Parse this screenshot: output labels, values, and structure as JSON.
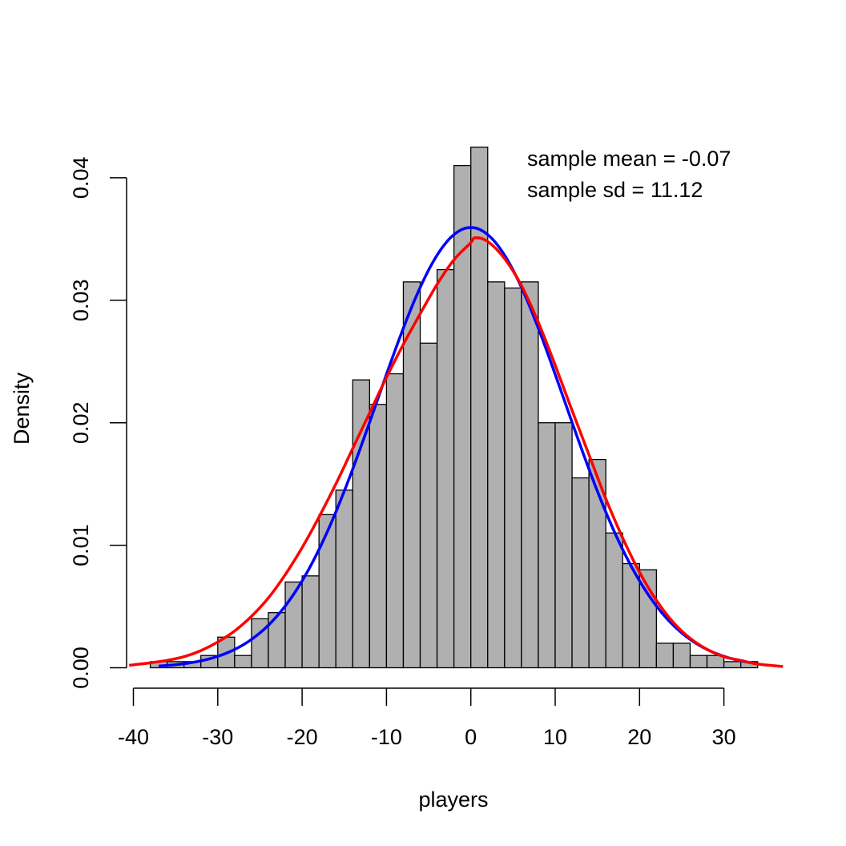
{
  "chart_data": {
    "type": "bar",
    "title": "",
    "xlabel": "players",
    "ylabel": "Density",
    "xlim": [
      -40,
      37
    ],
    "ylim": [
      0,
      0.043
    ],
    "x_ticks": [
      -40,
      -30,
      -20,
      -10,
      0,
      10,
      20,
      30
    ],
    "x_tick_labels": [
      "-40",
      "-30",
      "-20",
      "-10",
      "0",
      "10",
      "20",
      "30"
    ],
    "y_ticks": [
      0,
      0.01,
      0.02,
      0.03,
      0.04
    ],
    "y_tick_labels": [
      "0.00",
      "0.01",
      "0.02",
      "0.03",
      "0.04"
    ],
    "bin_width": 2,
    "bins": [
      {
        "x0": -38,
        "x1": -36,
        "density": 0.0005
      },
      {
        "x0": -36,
        "x1": -34,
        "density": 0.0005
      },
      {
        "x0": -34,
        "x1": -32,
        "density": 0.0005
      },
      {
        "x0": -32,
        "x1": -30,
        "density": 0.001
      },
      {
        "x0": -30,
        "x1": -28,
        "density": 0.0025
      },
      {
        "x0": -28,
        "x1": -26,
        "density": 0.001
      },
      {
        "x0": -26,
        "x1": -24,
        "density": 0.004
      },
      {
        "x0": -24,
        "x1": -22,
        "density": 0.0045
      },
      {
        "x0": -22,
        "x1": -20,
        "density": 0.007
      },
      {
        "x0": -20,
        "x1": -18,
        "density": 0.0075
      },
      {
        "x0": -18,
        "x1": -16,
        "density": 0.0125
      },
      {
        "x0": -16,
        "x1": -14,
        "density": 0.0145
      },
      {
        "x0": -14,
        "x1": -12,
        "density": 0.0235
      },
      {
        "x0": -12,
        "x1": -10,
        "density": 0.0215
      },
      {
        "x0": -10,
        "x1": -8,
        "density": 0.024
      },
      {
        "x0": -8,
        "x1": -6,
        "density": 0.0315
      },
      {
        "x0": -6,
        "x1": -4,
        "density": 0.0265
      },
      {
        "x0": -4,
        "x1": -2,
        "density": 0.0325
      },
      {
        "x0": -2,
        "x1": 0,
        "density": 0.041
      },
      {
        "x0": 0,
        "x1": 2,
        "density": 0.0425
      },
      {
        "x0": 2,
        "x1": 4,
        "density": 0.0315
      },
      {
        "x0": 4,
        "x1": 6,
        "density": 0.031
      },
      {
        "x0": 6,
        "x1": 8,
        "density": 0.0315
      },
      {
        "x0": 8,
        "x1": 10,
        "density": 0.02
      },
      {
        "x0": 10,
        "x1": 12,
        "density": 0.02
      },
      {
        "x0": 12,
        "x1": 14,
        "density": 0.0155
      },
      {
        "x0": 14,
        "x1": 16,
        "density": 0.017
      },
      {
        "x0": 16,
        "x1": 18,
        "density": 0.011
      },
      {
        "x0": 18,
        "x1": 20,
        "density": 0.0085
      },
      {
        "x0": 20,
        "x1": 22,
        "density": 0.008
      },
      {
        "x0": 22,
        "x1": 24,
        "density": 0.002
      },
      {
        "x0": 24,
        "x1": 26,
        "density": 0.002
      },
      {
        "x0": 26,
        "x1": 28,
        "density": 0.001
      },
      {
        "x0": 28,
        "x1": 30,
        "density": 0.001
      },
      {
        "x0": 30,
        "x1": 32,
        "density": 0.0005
      },
      {
        "x0": 32,
        "x1": 34,
        "density": 0.0005
      }
    ],
    "bar_fill": "#b0b0b0",
    "curves": [
      {
        "kind": "normal",
        "color": "#0000ff",
        "mean": 0.0,
        "sd": 11.1,
        "x_range": [
          -37,
          33
        ]
      },
      {
        "kind": "density",
        "color": "#ff0000",
        "x_range": [
          -40.5,
          37
        ],
        "points": [
          [
            -40.5,
            0.0002
          ],
          [
            -38,
            0.0004
          ],
          [
            -36,
            0.0006
          ],
          [
            -34,
            0.0009
          ],
          [
            -32,
            0.0014
          ],
          [
            -30,
            0.0021
          ],
          [
            -28,
            0.003
          ],
          [
            -26,
            0.0042
          ],
          [
            -24,
            0.0057
          ],
          [
            -22,
            0.0076
          ],
          [
            -20,
            0.0098
          ],
          [
            -18,
            0.0123
          ],
          [
            -16,
            0.015
          ],
          [
            -14,
            0.0179
          ],
          [
            -12,
            0.0208
          ],
          [
            -10,
            0.0237
          ],
          [
            -8,
            0.0264
          ],
          [
            -6,
            0.0289
          ],
          [
            -4,
            0.0313
          ],
          [
            -2,
            0.0333
          ],
          [
            0,
            0.0347
          ],
          [
            0.5,
            0.0351
          ],
          [
            2,
            0.0348
          ],
          [
            4,
            0.0334
          ],
          [
            6,
            0.0312
          ],
          [
            8,
            0.0282
          ],
          [
            10,
            0.0247
          ],
          [
            12,
            0.021
          ],
          [
            14,
            0.0174
          ],
          [
            16,
            0.0138
          ],
          [
            18,
            0.0106
          ],
          [
            20,
            0.0078
          ],
          [
            22,
            0.0055
          ],
          [
            24,
            0.0037
          ],
          [
            26,
            0.0024
          ],
          [
            28,
            0.0015
          ],
          [
            30,
            0.0009
          ],
          [
            32,
            0.0006
          ],
          [
            34,
            0.0003
          ],
          [
            37,
            0.0001
          ]
        ]
      }
    ],
    "annotations": [
      "sample mean = -0.07",
      "sample sd = 11.12"
    ],
    "grid": false,
    "legend": "none"
  }
}
